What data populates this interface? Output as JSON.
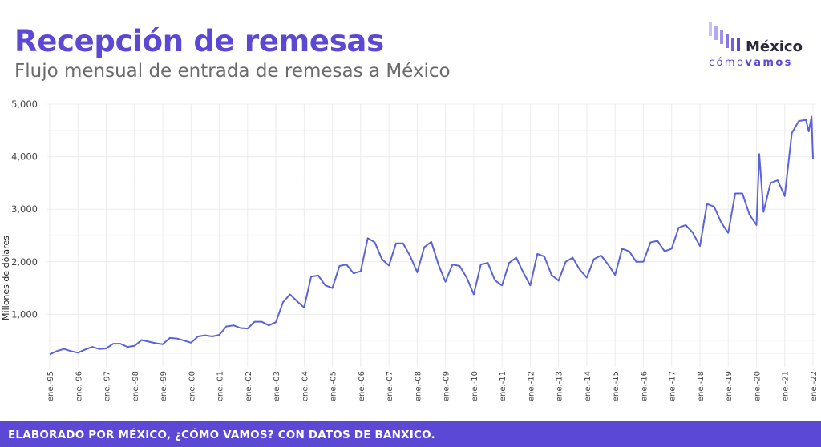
{
  "header": {
    "title": "Recepción de remesas",
    "subtitle": "Flujo mensual de entrada de remesas a México"
  },
  "logo": {
    "name": "México",
    "tagline_light": "cómo",
    "tagline_bold": "vamos",
    "accent_color": "#5b49d6",
    "bar_colors": [
      "#c9c3f2",
      "#b3aaed",
      "#9d91e8",
      "#8678e2",
      "#7060dc",
      "#5b49d6"
    ]
  },
  "footer": {
    "text": "ELABORADO POR MÉXICO, ¿CÓMO VAMOS? CON DATOS DE BANXICO."
  },
  "chart_data": {
    "type": "line",
    "title": "Recepción de remesas",
    "subtitle": "Flujo mensual de entrada de remesas a México",
    "xlabel": "",
    "ylabel": "Millones de dólares",
    "ylim": [
      0,
      5000
    ],
    "yticks": [
      1000,
      2000,
      3000,
      4000,
      5000
    ],
    "ytick_labels": [
      "1,000",
      "2,000",
      "3,000",
      "4,000",
      "5,000"
    ],
    "xlim": [
      1995.0,
      2022.0
    ],
    "xticks": [
      1995,
      1996,
      1997,
      1998,
      1999,
      2000,
      2001,
      2002,
      2003,
      2004,
      2005,
      2006,
      2007,
      2008,
      2009,
      2010,
      2011,
      2012,
      2013,
      2014,
      2015,
      2016,
      2017,
      2018,
      2019,
      2020,
      2021,
      2022
    ],
    "xtick_labels": [
      "ene.-95",
      "ene.-96",
      "ene.-97",
      "ene.-98",
      "ene.-99",
      "ene.-00",
      "ene.-01",
      "ene.-02",
      "ene.-03",
      "ene.-04",
      "ene.-05",
      "ene.-06",
      "ene.-07",
      "ene.-08",
      "ene.-09",
      "ene.-10",
      "ene.-11",
      "ene.-12",
      "ene.-13",
      "ene.-14",
      "ene.-15",
      "ene.-16",
      "ene.-17",
      "ene.-18",
      "ene.-19",
      "ene.-20",
      "ene.-21",
      "ene.-22"
    ],
    "grid": true,
    "line_color": "#5b63d8",
    "series": [
      {
        "x": [
          1995.0,
          1995.25,
          1995.5,
          1995.75,
          1996.0,
          1996.25,
          1996.5,
          1996.75,
          1997.0,
          1997.25,
          1997.5,
          1997.75,
          1998.0,
          1998.25,
          1998.5,
          1998.75,
          1999.0,
          1999.25,
          1999.5,
          1999.75,
          2000.0,
          2000.25,
          2000.5,
          2000.75,
          2001.0,
          2001.25,
          2001.5,
          2001.75,
          2002.0,
          2002.25,
          2002.5,
          2002.75,
          2003.0,
          2003.25,
          2003.5,
          2003.75,
          2004.0,
          2004.25,
          2004.5,
          2004.75,
          2005.0,
          2005.25,
          2005.5,
          2005.75,
          2006.0,
          2006.25,
          2006.5,
          2006.75,
          2007.0,
          2007.25,
          2007.5,
          2007.75,
          2008.0,
          2008.25,
          2008.5,
          2008.75,
          2009.0,
          2009.25,
          2009.5,
          2009.75,
          2010.0,
          2010.25,
          2010.5,
          2010.75,
          2011.0,
          2011.25,
          2011.5,
          2011.75,
          2012.0,
          2012.25,
          2012.5,
          2012.75,
          2013.0,
          2013.25,
          2013.5,
          2013.75,
          2014.0,
          2014.25,
          2014.5,
          2014.75,
          2015.0,
          2015.25,
          2015.5,
          2015.75,
          2016.0,
          2016.25,
          2016.5,
          2016.75,
          2017.0,
          2017.25,
          2017.5,
          2017.75,
          2018.0,
          2018.25,
          2018.5,
          2018.75,
          2019.0,
          2019.25,
          2019.5,
          2019.75,
          2020.0,
          2020.1,
          2020.25,
          2020.5,
          2020.75,
          2021.0,
          2021.25,
          2021.5,
          2021.75,
          2021.85,
          2021.95,
          2022.0
        ],
        "y": [
          240,
          300,
          340,
          300,
          270,
          330,
          380,
          340,
          350,
          440,
          440,
          380,
          400,
          510,
          480,
          450,
          430,
          550,
          540,
          500,
          460,
          580,
          600,
          580,
          610,
          770,
          790,
          740,
          730,
          860,
          860,
          790,
          850,
          1230,
          1380,
          1250,
          1130,
          1720,
          1740,
          1550,
          1500,
          1920,
          1950,
          1780,
          1820,
          2450,
          2370,
          2050,
          1930,
          2350,
          2350,
          2110,
          1800,
          2280,
          2380,
          1950,
          1620,
          1950,
          1920,
          1700,
          1380,
          1950,
          1980,
          1650,
          1550,
          1980,
          2080,
          1800,
          1550,
          2150,
          2100,
          1750,
          1640,
          2000,
          2080,
          1850,
          1700,
          2050,
          2120,
          1950,
          1750,
          2250,
          2200,
          2000,
          2000,
          2370,
          2400,
          2200,
          2250,
          2650,
          2700,
          2550,
          2300,
          3100,
          3050,
          2750,
          2550,
          3300,
          3300,
          2900,
          2700,
          4050,
          2950,
          3500,
          3550,
          3250,
          4450,
          4680,
          4700,
          4480,
          4760,
          3950
        ]
      }
    ]
  }
}
